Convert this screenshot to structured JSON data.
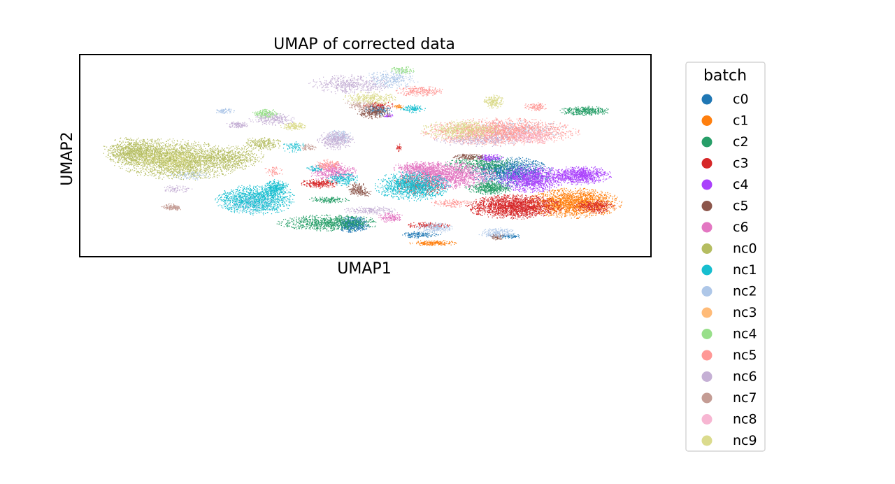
{
  "chart_data": {
    "type": "scatter",
    "title": "UMAP of corrected data",
    "xlabel": "UMAP1",
    "ylabel": "UMAP2",
    "ticks": "none",
    "grid": false,
    "legend": {
      "title": "batch",
      "placement": "outside-right"
    },
    "series": [
      {
        "name": "c0",
        "color": "#1f77b4"
      },
      {
        "name": "c1",
        "color": "#ff7f0e"
      },
      {
        "name": "c2",
        "color": "#279e68"
      },
      {
        "name": "c3",
        "color": "#d62728"
      },
      {
        "name": "c4",
        "color": "#aa40fc"
      },
      {
        "name": "c5",
        "color": "#8c564b"
      },
      {
        "name": "c6",
        "color": "#e377c2"
      },
      {
        "name": "nc0",
        "color": "#b5bd61"
      },
      {
        "name": "nc1",
        "color": "#17becf"
      },
      {
        "name": "nc2",
        "color": "#aec7e8"
      },
      {
        "name": "nc3",
        "color": "#ffbb78"
      },
      {
        "name": "nc4",
        "color": "#98df8a"
      },
      {
        "name": "nc5",
        "color": "#ff9896"
      },
      {
        "name": "nc6",
        "color": "#c5b0d5"
      },
      {
        "name": "nc7",
        "color": "#c49c94"
      },
      {
        "name": "nc8",
        "color": "#f7b6d2"
      },
      {
        "name": "nc9",
        "color": "#dbdb8d"
      }
    ]
  }
}
